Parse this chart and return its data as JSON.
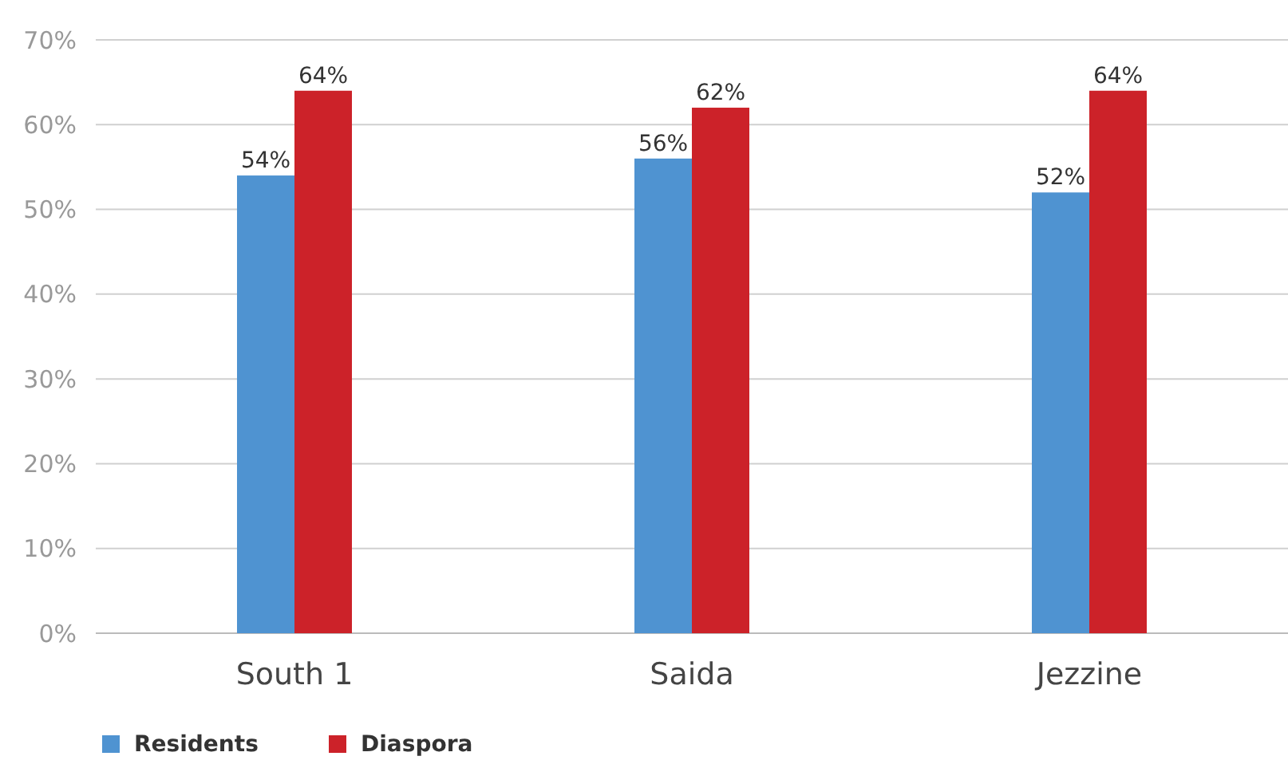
{
  "chart_data": {
    "type": "bar",
    "categories": [
      "South 1",
      "Saida",
      "Jezzine"
    ],
    "series": [
      {
        "name": "Residents",
        "color": "#4f93d1",
        "values": [
          54,
          56,
          52
        ],
        "value_labels": [
          "54%",
          "56%",
          "52%"
        ]
      },
      {
        "name": "Diaspora",
        "color": "#cc2229",
        "values": [
          64,
          62,
          64
        ],
        "value_labels": [
          "64%",
          "62%",
          "64%"
        ]
      }
    ],
    "ylim": [
      0,
      70
    ],
    "yticks": [
      {
        "value": 0,
        "label": "0%"
      },
      {
        "value": 10,
        "label": "10%"
      },
      {
        "value": 20,
        "label": "20%"
      },
      {
        "value": 30,
        "label": "30%"
      },
      {
        "value": 40,
        "label": "40%"
      },
      {
        "value": 50,
        "label": "50%"
      },
      {
        "value": 60,
        "label": "60%"
      },
      {
        "value": 70,
        "label": "70%"
      }
    ],
    "grid": "y",
    "legend": "bottom left"
  }
}
